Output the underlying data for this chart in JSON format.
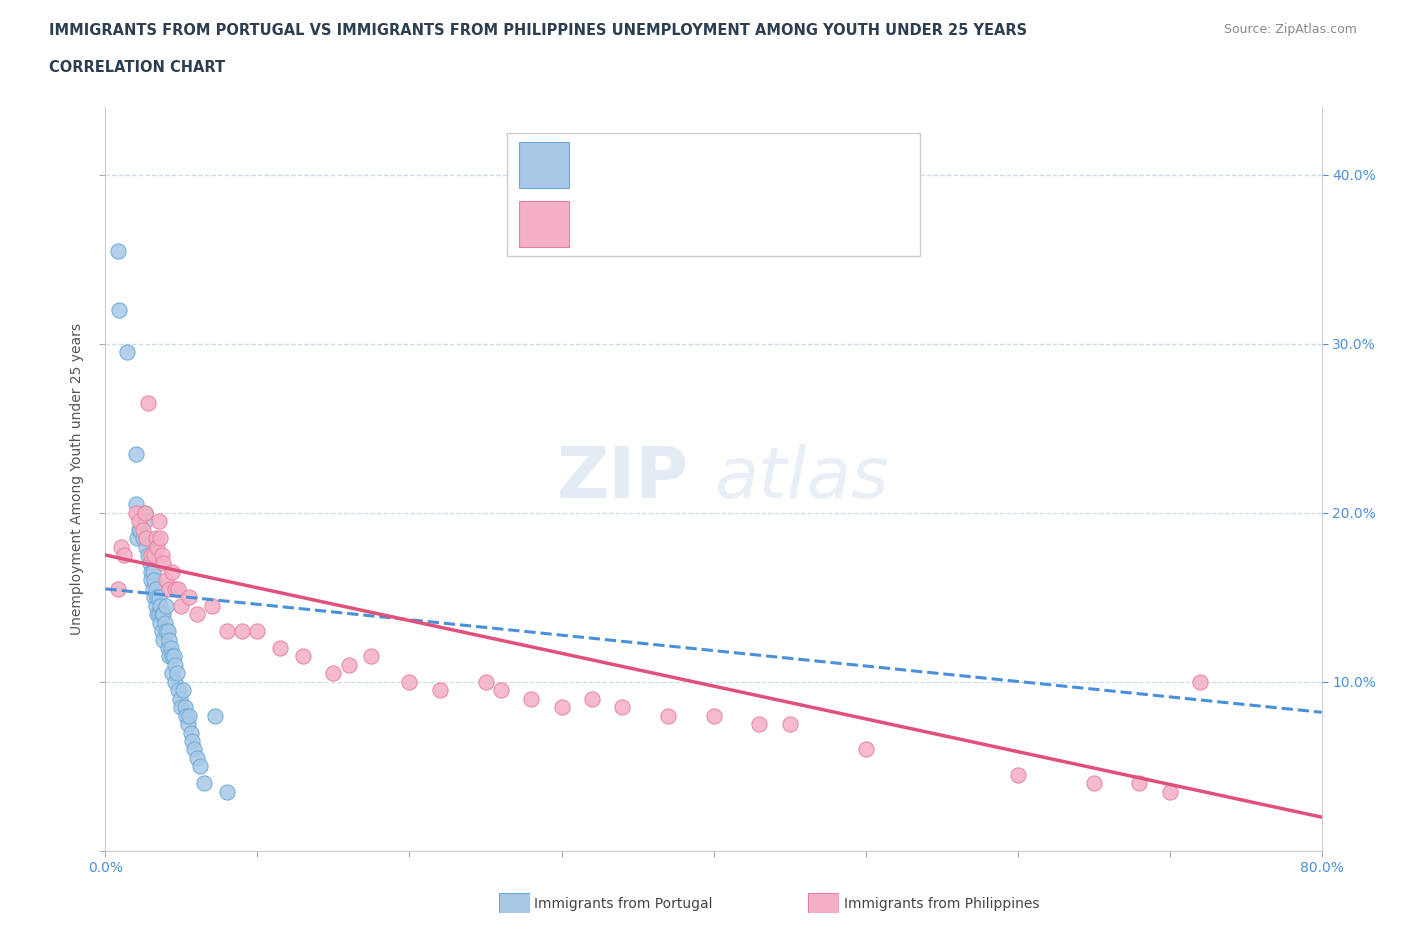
{
  "title_line1": "IMMIGRANTS FROM PORTUGAL VS IMMIGRANTS FROM PHILIPPINES UNEMPLOYMENT AMONG YOUTH UNDER 25 YEARS",
  "title_line2": "CORRELATION CHART",
  "source_text": "Source: ZipAtlas.com",
  "ylabel": "Unemployment Among Youth under 25 years",
  "xlim": [
    0.0,
    0.8
  ],
  "ylim": [
    0.0,
    0.44
  ],
  "portugal_color": "#a8c8e8",
  "portugal_edge": "#6aaad4",
  "philippines_color": "#f4b0c4",
  "philippines_edge": "#e880a0",
  "trend_blue_color": "#4a90d9",
  "trend_pink_color": "#e0507a",
  "watermark_zip": "ZIP",
  "watermark_atlas": "atlas",
  "legend_label_portugal": "Immigrants from Portugal",
  "legend_label_philippines": "Immigrants from Philippines",
  "portugal_x": [
    0.008,
    0.009,
    0.014,
    0.02,
    0.02,
    0.021,
    0.022,
    0.023,
    0.025,
    0.026,
    0.026,
    0.027,
    0.027,
    0.028,
    0.029,
    0.03,
    0.03,
    0.031,
    0.031,
    0.032,
    0.032,
    0.033,
    0.033,
    0.034,
    0.034,
    0.035,
    0.035,
    0.036,
    0.036,
    0.037,
    0.037,
    0.038,
    0.038,
    0.039,
    0.04,
    0.04,
    0.041,
    0.041,
    0.042,
    0.042,
    0.043,
    0.044,
    0.044,
    0.045,
    0.046,
    0.046,
    0.047,
    0.048,
    0.049,
    0.05,
    0.051,
    0.052,
    0.053,
    0.054,
    0.055,
    0.056,
    0.057,
    0.058,
    0.06,
    0.062,
    0.065,
    0.072,
    0.08
  ],
  "portugal_y": [
    0.355,
    0.32,
    0.295,
    0.235,
    0.205,
    0.185,
    0.19,
    0.19,
    0.185,
    0.2,
    0.195,
    0.185,
    0.18,
    0.175,
    0.17,
    0.165,
    0.16,
    0.165,
    0.155,
    0.16,
    0.15,
    0.155,
    0.145,
    0.15,
    0.14,
    0.15,
    0.14,
    0.145,
    0.135,
    0.14,
    0.13,
    0.14,
    0.125,
    0.135,
    0.145,
    0.13,
    0.13,
    0.12,
    0.125,
    0.115,
    0.12,
    0.115,
    0.105,
    0.115,
    0.11,
    0.1,
    0.105,
    0.095,
    0.09,
    0.085,
    0.095,
    0.085,
    0.08,
    0.075,
    0.08,
    0.07,
    0.065,
    0.06,
    0.055,
    0.05,
    0.04,
    0.08,
    0.035
  ],
  "philippines_x": [
    0.008,
    0.01,
    0.012,
    0.02,
    0.022,
    0.025,
    0.026,
    0.027,
    0.028,
    0.03,
    0.032,
    0.033,
    0.034,
    0.035,
    0.036,
    0.037,
    0.038,
    0.04,
    0.042,
    0.044,
    0.046,
    0.048,
    0.05,
    0.055,
    0.06,
    0.07,
    0.08,
    0.09,
    0.1,
    0.115,
    0.13,
    0.15,
    0.16,
    0.175,
    0.2,
    0.22,
    0.25,
    0.26,
    0.28,
    0.3,
    0.32,
    0.34,
    0.37,
    0.4,
    0.43,
    0.45,
    0.5,
    0.6,
    0.65,
    0.68,
    0.7,
    0.72
  ],
  "philippines_y": [
    0.155,
    0.18,
    0.175,
    0.2,
    0.195,
    0.19,
    0.2,
    0.185,
    0.265,
    0.175,
    0.175,
    0.185,
    0.18,
    0.195,
    0.185,
    0.175,
    0.17,
    0.16,
    0.155,
    0.165,
    0.155,
    0.155,
    0.145,
    0.15,
    0.14,
    0.145,
    0.13,
    0.13,
    0.13,
    0.12,
    0.115,
    0.105,
    0.11,
    0.115,
    0.1,
    0.095,
    0.1,
    0.095,
    0.09,
    0.085,
    0.09,
    0.085,
    0.08,
    0.08,
    0.075,
    0.075,
    0.06,
    0.045,
    0.04,
    0.04,
    0.035,
    0.1
  ]
}
